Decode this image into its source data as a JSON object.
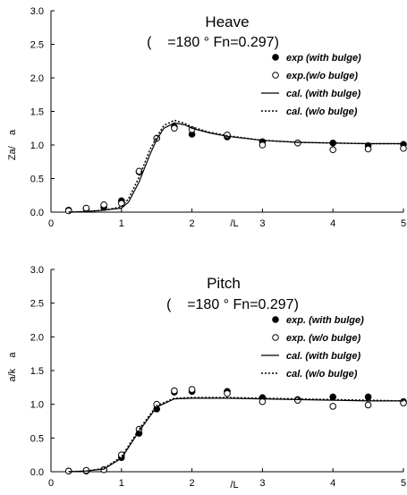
{
  "chart_data": [
    {
      "type": "line",
      "title": "Heave",
      "subtitle": "(    =180 ° Fn=0.297)",
      "ylabel": "Za/    a",
      "xlabel": "/L",
      "xlim": [
        0,
        5
      ],
      "ylim": [
        0,
        3
      ],
      "xticks": [
        "0",
        "1",
        "2",
        "3",
        "4",
        "5"
      ],
      "yticks": [
        "0.0",
        "0.5",
        "1.0",
        "1.5",
        "2.0",
        "2.5",
        "3.0"
      ],
      "legend_position": "right",
      "series": [
        {
          "name": "exp (with bulge)",
          "style": "filled-circle",
          "points": [
            [
              0.25,
              0.03
            ],
            [
              0.5,
              0.05
            ],
            [
              0.75,
              0.07
            ],
            [
              1.0,
              0.17
            ],
            [
              1.25,
              0.6
            ],
            [
              1.5,
              1.1
            ],
            [
              1.75,
              1.27
            ],
            [
              2.0,
              1.16
            ],
            [
              2.5,
              1.12
            ],
            [
              3.0,
              1.05
            ],
            [
              3.5,
              1.03
            ],
            [
              4.0,
              1.03
            ],
            [
              4.5,
              0.99
            ],
            [
              5.0,
              1.01
            ]
          ]
        },
        {
          "name": "exp.(w/o bulge)",
          "style": "open-circle",
          "points": [
            [
              0.25,
              0.02
            ],
            [
              0.5,
              0.06
            ],
            [
              0.75,
              0.11
            ],
            [
              1.0,
              0.13
            ],
            [
              1.25,
              0.61
            ],
            [
              1.5,
              1.1
            ],
            [
              1.75,
              1.25
            ],
            [
              2.0,
              1.23
            ],
            [
              2.5,
              1.15
            ],
            [
              3.0,
              1.0
            ],
            [
              3.5,
              1.03
            ],
            [
              4.0,
              0.93
            ],
            [
              4.5,
              0.94
            ],
            [
              5.0,
              0.95
            ]
          ]
        },
        {
          "name": "cal. (with bulge)",
          "style": "solid",
          "points": [
            [
              0.25,
              0.0
            ],
            [
              0.5,
              0.01
            ],
            [
              0.75,
              0.03
            ],
            [
              1.0,
              0.06
            ],
            [
              1.1,
              0.15
            ],
            [
              1.25,
              0.45
            ],
            [
              1.4,
              0.85
            ],
            [
              1.5,
              1.08
            ],
            [
              1.6,
              1.25
            ],
            [
              1.75,
              1.33
            ],
            [
              1.9,
              1.3
            ],
            [
              2.0,
              1.25
            ],
            [
              2.25,
              1.18
            ],
            [
              2.5,
              1.13
            ],
            [
              3.0,
              1.07
            ],
            [
              3.5,
              1.04
            ],
            [
              4.0,
              1.03
            ],
            [
              4.5,
              1.02
            ],
            [
              5.0,
              1.02
            ]
          ]
        },
        {
          "name": "cal. (w/o bulge)",
          "style": "dotted",
          "points": [
            [
              0.25,
              0.0
            ],
            [
              0.5,
              0.01
            ],
            [
              0.75,
              0.03
            ],
            [
              1.0,
              0.08
            ],
            [
              1.1,
              0.2
            ],
            [
              1.25,
              0.52
            ],
            [
              1.4,
              0.92
            ],
            [
              1.5,
              1.12
            ],
            [
              1.6,
              1.29
            ],
            [
              1.75,
              1.37
            ],
            [
              1.9,
              1.32
            ],
            [
              2.0,
              1.27
            ],
            [
              2.25,
              1.19
            ],
            [
              2.5,
              1.14
            ],
            [
              3.0,
              1.07
            ],
            [
              3.5,
              1.04
            ],
            [
              4.0,
              1.03
            ],
            [
              4.5,
              1.02
            ],
            [
              5.0,
              1.02
            ]
          ]
        }
      ]
    },
    {
      "type": "line",
      "title": "Pitch",
      "subtitle": "(    =180 ° Fn=0.297)",
      "ylabel": "a/k    a",
      "xlabel": "/L",
      "xlim": [
        0,
        5
      ],
      "ylim": [
        0,
        3
      ],
      "xticks": [
        "0",
        "1",
        "2",
        "3",
        "4",
        "5"
      ],
      "yticks": [
        "0.0",
        "0.5",
        "1.0",
        "1.5",
        "2.0",
        "2.5",
        "3.0"
      ],
      "legend_position": "right",
      "series": [
        {
          "name": "exp. (with bulge)",
          "style": "filled-circle",
          "points": [
            [
              0.25,
              0.01
            ],
            [
              0.5,
              0.01
            ],
            [
              0.75,
              0.03
            ],
            [
              1.0,
              0.21
            ],
            [
              1.25,
              0.57
            ],
            [
              1.5,
              0.93
            ],
            [
              1.75,
              1.18
            ],
            [
              2.0,
              1.19
            ],
            [
              2.5,
              1.19
            ],
            [
              3.0,
              1.1
            ],
            [
              3.5,
              1.07
            ],
            [
              4.0,
              1.11
            ],
            [
              4.5,
              1.11
            ],
            [
              5.0,
              1.04
            ]
          ]
        },
        {
          "name": "exp. (w/o bulge)",
          "style": "open-circle",
          "points": [
            [
              0.25,
              0.01
            ],
            [
              0.5,
              0.02
            ],
            [
              0.75,
              0.03
            ],
            [
              1.0,
              0.25
            ],
            [
              1.25,
              0.63
            ],
            [
              1.5,
              1.0
            ],
            [
              1.75,
              1.2
            ],
            [
              2.0,
              1.22
            ],
            [
              2.5,
              1.16
            ],
            [
              3.0,
              1.04
            ],
            [
              3.5,
              1.06
            ],
            [
              4.0,
              0.97
            ],
            [
              4.5,
              0.99
            ],
            [
              5.0,
              1.02
            ]
          ]
        },
        {
          "name": "cal. (with bulge)",
          "style": "solid",
          "points": [
            [
              0.25,
              0.0
            ],
            [
              0.5,
              0.01
            ],
            [
              0.75,
              0.04
            ],
            [
              1.0,
              0.2
            ],
            [
              1.25,
              0.6
            ],
            [
              1.5,
              0.96
            ],
            [
              1.75,
              1.08
            ],
            [
              2.0,
              1.09
            ],
            [
              2.5,
              1.09
            ],
            [
              3.0,
              1.08
            ],
            [
              3.5,
              1.07
            ],
            [
              4.0,
              1.06
            ],
            [
              4.5,
              1.05
            ],
            [
              5.0,
              1.05
            ]
          ]
        },
        {
          "name": "cal. (w/o bulge)",
          "style": "dotted",
          "points": [
            [
              0.25,
              0.0
            ],
            [
              0.5,
              0.01
            ],
            [
              0.75,
              0.05
            ],
            [
              1.0,
              0.22
            ],
            [
              1.25,
              0.63
            ],
            [
              1.5,
              0.98
            ],
            [
              1.75,
              1.09
            ],
            [
              2.0,
              1.1
            ],
            [
              2.5,
              1.1
            ],
            [
              3.0,
              1.09
            ],
            [
              3.5,
              1.08
            ],
            [
              4.0,
              1.07
            ],
            [
              4.5,
              1.06
            ],
            [
              5.0,
              1.05
            ]
          ]
        }
      ]
    }
  ]
}
